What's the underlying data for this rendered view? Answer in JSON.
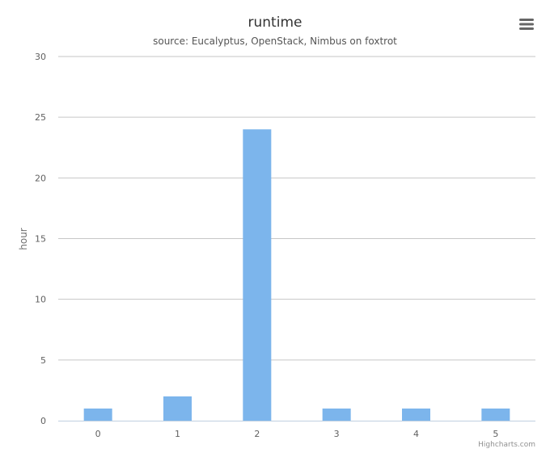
{
  "chart_data": {
    "type": "bar",
    "title": "runtime",
    "subtitle": "source: Eucalyptus, OpenStack, Nimbus on foxtrot",
    "ylabel": "hour",
    "xlabel": "",
    "categories": [
      "0",
      "1",
      "2",
      "3",
      "4",
      "5"
    ],
    "values": [
      1,
      2,
      24,
      1,
      1,
      1
    ],
    "ylim": [
      0,
      30
    ],
    "yticks": [
      0,
      5,
      10,
      15,
      20,
      25,
      30
    ],
    "grid": true,
    "legend": "none",
    "bar_color": "#7cb5ec"
  },
  "menu": {
    "icon": "hamburger-menu-icon"
  },
  "credits": {
    "text": "Highcharts.com"
  }
}
